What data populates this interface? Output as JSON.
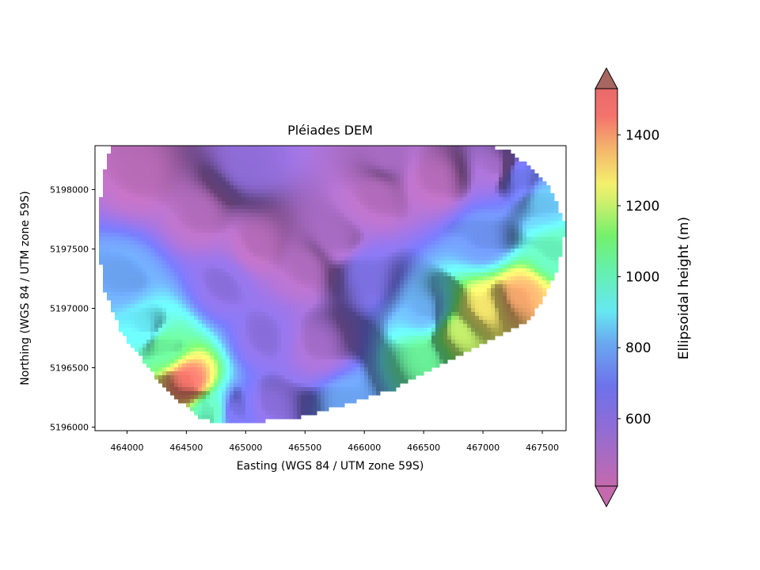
{
  "chart_data": {
    "type": "heatmap",
    "title": "Pléiades DEM",
    "xlabel": "Easting (WGS 84 / UTM zone 59S)",
    "ylabel": "Northing (WGS 84 / UTM zone 59S)",
    "xlim": [
      463730,
      467700
    ],
    "ylim": [
      5195970,
      5198370
    ],
    "xticks": [
      464000,
      464500,
      465000,
      465500,
      466000,
      466500,
      467000,
      467500
    ],
    "yticks": [
      5196000,
      5196500,
      5197000,
      5197500,
      5198000
    ],
    "xtick_labels": [
      "464000",
      "464500",
      "465000",
      "465500",
      "466000",
      "466500",
      "467000",
      "467500"
    ],
    "ytick_labels": [
      "5196000",
      "5196500",
      "5197000",
      "5197500",
      "5198000"
    ],
    "colorbar": {
      "label": "Ellipsoidal height (m)",
      "range": [
        410,
        1530
      ],
      "ticks": [
        600,
        800,
        1000,
        1200,
        1400
      ],
      "tick_labels": [
        "600",
        "800",
        "1000",
        "1200",
        "1400"
      ],
      "extend": "both",
      "colormap": "gist_rainbow_r with alpha 0.6 over hillshade"
    },
    "valid_region_outline": [
      [
        463860,
        5198360
      ],
      [
        464300,
        5198360
      ],
      [
        467050,
        5198370
      ],
      [
        467250,
        5198310
      ],
      [
        467550,
        5198050
      ],
      [
        467700,
        5197700
      ],
      [
        467620,
        5197300
      ],
      [
        467400,
        5196900
      ],
      [
        466800,
        5196600
      ],
      [
        466250,
        5196320
      ],
      [
        465500,
        5196090
      ],
      [
        464850,
        5196020
      ],
      [
        464600,
        5196080
      ],
      [
        464300,
        5196350
      ],
      [
        463950,
        5196800
      ],
      [
        463790,
        5197200
      ],
      [
        463760,
        5197700
      ],
      [
        463790,
        5198050
      ]
    ],
    "elevation_control_points": [
      {
        "x": 464100,
        "y": 5198150,
        "z": 450
      },
      {
        "x": 464600,
        "y": 5197800,
        "z": 470
      },
      {
        "x": 465100,
        "y": 5197550,
        "z": 460
      },
      {
        "x": 465500,
        "y": 5197350,
        "z": 480
      },
      {
        "x": 465600,
        "y": 5196700,
        "z": 520
      },
      {
        "x": 465750,
        "y": 5197600,
        "z": 500
      },
      {
        "x": 466100,
        "y": 5197950,
        "z": 470
      },
      {
        "x": 466600,
        "y": 5198100,
        "z": 460
      },
      {
        "x": 466200,
        "y": 5198300,
        "z": 500
      },
      {
        "x": 467100,
        "y": 5198200,
        "z": 520
      },
      {
        "x": 465000,
        "y": 5198200,
        "z": 580
      },
      {
        "x": 464800,
        "y": 5197200,
        "z": 600
      },
      {
        "x": 465150,
        "y": 5196750,
        "z": 600
      },
      {
        "x": 465200,
        "y": 5196200,
        "z": 600
      },
      {
        "x": 464900,
        "y": 5196150,
        "z": 660
      },
      {
        "x": 463950,
        "y": 5197250,
        "z": 800
      },
      {
        "x": 464150,
        "y": 5196850,
        "z": 900
      },
      {
        "x": 464300,
        "y": 5196700,
        "z": 1050
      },
      {
        "x": 464500,
        "y": 5196400,
        "z": 1450
      },
      {
        "x": 464700,
        "y": 5196150,
        "z": 1000
      },
      {
        "x": 465850,
        "y": 5196200,
        "z": 800
      },
      {
        "x": 466000,
        "y": 5197300,
        "z": 640
      },
      {
        "x": 466500,
        "y": 5197000,
        "z": 820
      },
      {
        "x": 466500,
        "y": 5196600,
        "z": 1050
      },
      {
        "x": 466800,
        "y": 5196800,
        "z": 1200
      },
      {
        "x": 467000,
        "y": 5197000,
        "z": 1280
      },
      {
        "x": 467300,
        "y": 5197100,
        "z": 1380
      },
      {
        "x": 467600,
        "y": 5197500,
        "z": 1000
      },
      {
        "x": 467500,
        "y": 5197900,
        "z": 850
      },
      {
        "x": 467300,
        "y": 5198100,
        "z": 700
      },
      {
        "x": 467000,
        "y": 5197600,
        "z": 760
      }
    ]
  }
}
